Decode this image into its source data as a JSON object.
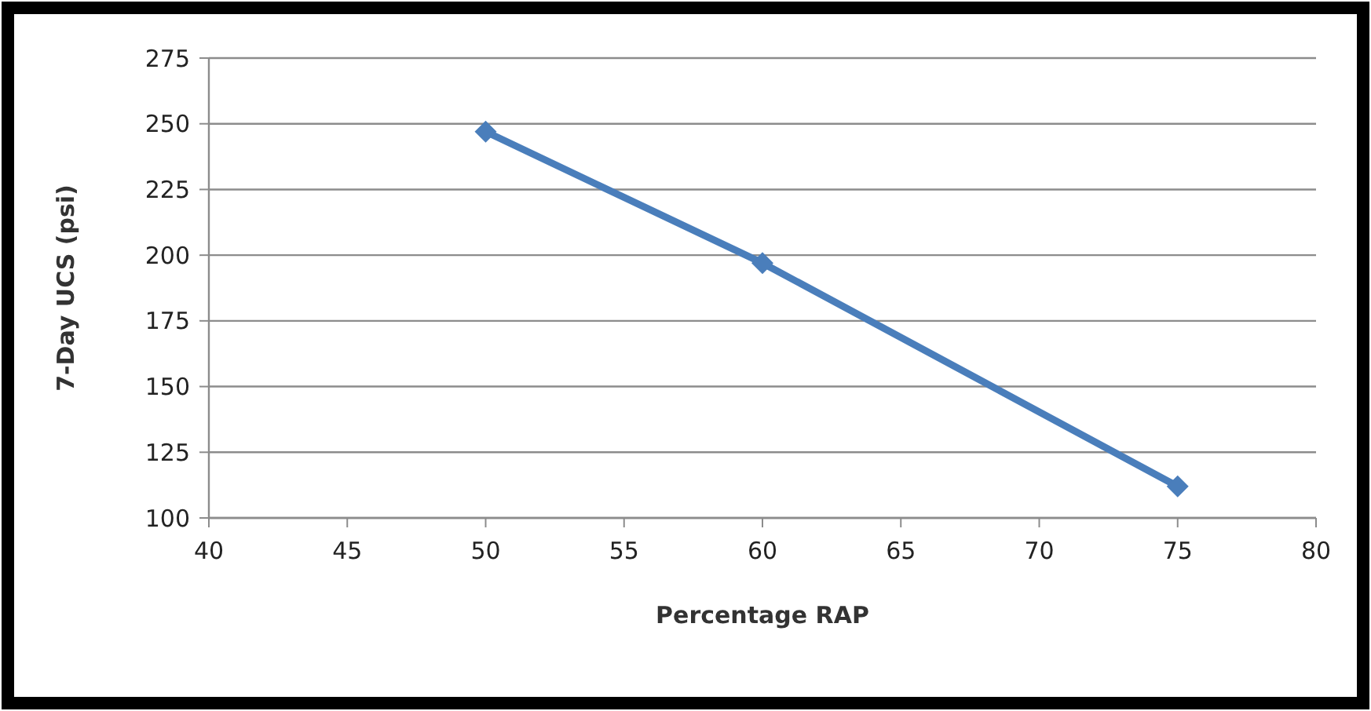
{
  "chart_data": {
    "type": "line",
    "xlabel": "Percentage RAP",
    "ylabel": "7-Day UCS (psi)",
    "x": [
      50,
      60,
      75
    ],
    "series": [
      {
        "color": "#4a7ebb",
        "values": [
          247,
          197,
          112
        ]
      }
    ],
    "xlim": [
      40,
      80
    ],
    "xticks": [
      40,
      45,
      50,
      55,
      60,
      65,
      70,
      75,
      80
    ],
    "ylim": [
      100,
      275
    ],
    "yticks": [
      100,
      125,
      150,
      175,
      200,
      225,
      250,
      275
    ],
    "grid": "y",
    "marker": "diamond",
    "line_style": "solid"
  }
}
